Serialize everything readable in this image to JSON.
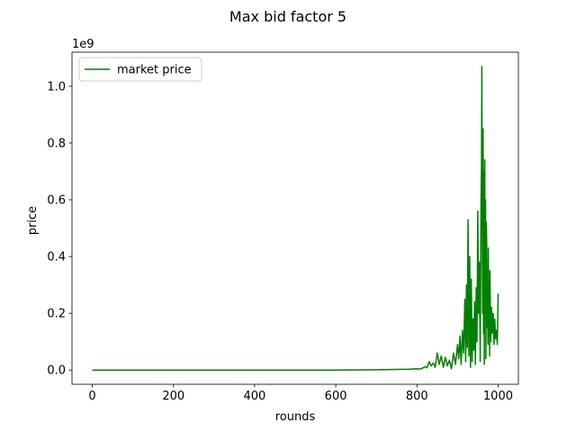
{
  "chart_data": {
    "type": "line",
    "title": "Max bid factor 5",
    "xlabel": "rounds",
    "ylabel": "price",
    "offset_text": "1e9",
    "xlim": [
      -50,
      1050
    ],
    "ylim": [
      -0.05,
      1.12
    ],
    "y_scale_multiplier": 1000000000,
    "xticks": [
      0,
      200,
      400,
      600,
      800,
      1000
    ],
    "yticks": [
      0.0,
      0.2,
      0.4,
      0.6,
      0.8,
      1.0
    ],
    "ytick_labels": [
      "0.0",
      "0.2",
      "0.4",
      "0.6",
      "0.8",
      "1.0"
    ],
    "xtick_labels": [
      "0",
      "200",
      "400",
      "600",
      "800",
      "1000"
    ],
    "legend": {
      "position": "upper-left",
      "entries": [
        "market price"
      ]
    },
    "grid": false,
    "series": [
      {
        "name": "market price",
        "color": "#008000",
        "x": [
          0,
          100,
          200,
          300,
          400,
          500,
          600,
          700,
          780,
          800,
          810,
          820,
          825,
          830,
          835,
          840,
          845,
          850,
          855,
          860,
          865,
          870,
          875,
          880,
          885,
          890,
          895,
          900,
          903,
          906,
          909,
          912,
          915,
          918,
          920,
          922,
          924,
          926,
          928,
          930,
          932,
          934,
          936,
          938,
          940,
          942,
          944,
          946,
          948,
          950,
          952,
          954,
          956,
          958,
          959,
          960,
          961,
          962,
          963,
          964,
          965,
          966,
          967,
          968,
          969,
          970,
          971,
          972,
          973,
          974,
          975,
          976,
          977,
          978,
          979,
          980,
          982,
          984,
          986,
          988,
          990,
          992,
          994,
          996,
          998,
          1000
        ],
        "y": [
          0,
          0,
          0,
          0,
          0,
          0,
          0,
          0.001,
          0.003,
          0.005,
          0.004,
          0.012,
          0.008,
          0.03,
          0.015,
          0.025,
          0.01,
          0.06,
          0.02,
          0.05,
          0.01,
          0.045,
          0.015,
          0.035,
          0.005,
          0.06,
          0.02,
          0.09,
          0.04,
          0.12,
          0.02,
          0.14,
          0.06,
          0.25,
          0.03,
          0.3,
          0.08,
          0.53,
          0.05,
          0.4,
          0.01,
          0.32,
          0.03,
          0.18,
          0.07,
          0.24,
          0.02,
          0.29,
          0.1,
          0.56,
          0.2,
          0.38,
          0.03,
          0.6,
          0.72,
          1.07,
          0.45,
          0.2,
          0.85,
          0.13,
          0.7,
          0.02,
          0.74,
          0.33,
          0.6,
          0.04,
          0.52,
          0.44,
          0.15,
          0.32,
          0.09,
          0.43,
          0.12,
          0.3,
          0.05,
          0.35,
          0.1,
          0.22,
          0.13,
          0.2,
          0.09,
          0.18,
          0.11,
          0.14,
          0.09,
          0.27
        ]
      }
    ]
  }
}
